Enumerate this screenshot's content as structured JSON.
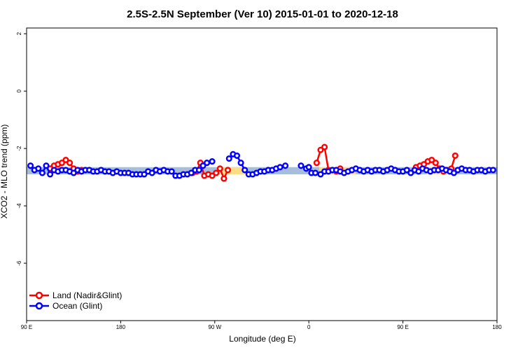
{
  "chart_data": {
    "type": "line",
    "title": "2.5S-2.5N September (Ver 10)   2015-01-01 to 2020-12-18",
    "xlabel": "Longitude (deg E)",
    "ylabel": "XCO2 - MLO trend (ppm)",
    "xlim": [
      90,
      450
    ],
    "ylim": [
      -8,
      2.2
    ],
    "x_ticks": [
      {
        "value": 90,
        "label": "90 E"
      },
      {
        "value": 162,
        "label": "180"
      },
      {
        "value": 234,
        "label": "90 W"
      },
      {
        "value": 306,
        "label": "0"
      },
      {
        "value": 378,
        "label": "90 E"
      },
      {
        "value": 450,
        "label": "180"
      }
    ],
    "y_ticks": [
      {
        "value": 2,
        "label": "2"
      },
      {
        "value": 0,
        "label": "0"
      },
      {
        "value": -2,
        "label": "-2"
      },
      {
        "value": -4,
        "label": "-4"
      },
      {
        "value": -6,
        "label": "-6"
      }
    ],
    "bands": [
      {
        "x0": 90,
        "x1": 450,
        "y0": -2.9,
        "y1": -2.65,
        "color": "#a6bddb"
      },
      {
        "x0": 108,
        "x1": 114,
        "y0": -2.9,
        "y1": -2.65,
        "color": "#fddc87"
      },
      {
        "x0": 238,
        "x1": 258,
        "y0": -2.9,
        "y1": -2.65,
        "color": "#fddc87"
      },
      {
        "x0": 314,
        "x1": 342,
        "y0": -2.9,
        "y1": -2.65,
        "color": "#fddc87"
      },
      {
        "x0": 396,
        "x1": 416,
        "y0": -2.9,
        "y1": -2.65,
        "color": "#fddc87"
      }
    ],
    "legend_position": "bottom-left",
    "series": [
      {
        "name": "Land (Nadir&Glint)",
        "color": "#ff0000",
        "x": [
          108,
          111,
          114,
          117,
          120,
          123,
          126,
          129,
          132,
          217,
          220,
          223,
          226,
          229,
          232,
          235,
          238,
          241,
          244,
          312,
          315,
          318,
          321,
          324,
          327,
          330,
          388,
          391,
          394,
          397,
          400,
          403,
          406,
          409,
          412,
          415,
          418
        ],
        "y": [
          -2.7,
          -2.6,
          -2.55,
          -2.5,
          -2.4,
          -2.5,
          -2.7,
          -2.8,
          -2.75,
          -2.85,
          -2.8,
          -2.5,
          -2.95,
          -2.9,
          -2.95,
          -2.85,
          -2.7,
          -3.05,
          -2.75,
          -2.5,
          -2.05,
          -1.95,
          -2.75,
          -2.75,
          -2.8,
          -2.7,
          -2.65,
          -2.6,
          -2.55,
          -2.45,
          -2.4,
          -2.5,
          -2.7,
          -2.8,
          -2.75,
          -2.7,
          -2.25
        ]
      },
      {
        "name": "Ocean (Glint)",
        "color": "#0000ff",
        "x": [
          93,
          96,
          99,
          102,
          105,
          108,
          111,
          114,
          117,
          120,
          123,
          126,
          129,
          132,
          135,
          138,
          141,
          144,
          147,
          150,
          153,
          156,
          159,
          162,
          165,
          168,
          171,
          174,
          177,
          180,
          183,
          186,
          189,
          192,
          195,
          198,
          201,
          204,
          207,
          210,
          213,
          216,
          219,
          222,
          225,
          228,
          232,
          245,
          248,
          251,
          254,
          257,
          260,
          263,
          266,
          269,
          272,
          275,
          278,
          281,
          284,
          288,
          300,
          304,
          306,
          308,
          311,
          315,
          318,
          321,
          324,
          327,
          330,
          333,
          336,
          339,
          342,
          345,
          348,
          351,
          354,
          357,
          360,
          363,
          366,
          369,
          372,
          375,
          378,
          381,
          384,
          387,
          390,
          393,
          396,
          399,
          402,
          405,
          408,
          411,
          414,
          417,
          420,
          423,
          426,
          429,
          432,
          435,
          438,
          441,
          444,
          447
        ],
        "y": [
          -2.6,
          -2.75,
          -2.7,
          -2.85,
          -2.6,
          -2.9,
          -2.75,
          -2.8,
          -2.75,
          -2.75,
          -2.8,
          -2.85,
          -2.75,
          -2.8,
          -2.75,
          -2.75,
          -2.8,
          -2.8,
          -2.75,
          -2.8,
          -2.8,
          -2.85,
          -2.8,
          -2.85,
          -2.85,
          -2.85,
          -2.9,
          -2.9,
          -2.9,
          -2.9,
          -2.8,
          -2.85,
          -2.75,
          -2.8,
          -2.75,
          -2.8,
          -2.8,
          -2.95,
          -2.95,
          -2.9,
          -2.9,
          -2.85,
          -2.75,
          -2.75,
          -2.6,
          -2.5,
          -2.45,
          -2.35,
          -2.2,
          -2.25,
          -2.5,
          -2.75,
          -2.9,
          -2.9,
          -2.85,
          -2.8,
          -2.8,
          -2.75,
          -2.75,
          -2.7,
          -2.65,
          -2.6,
          -2.6,
          -2.7,
          -2.65,
          -2.85,
          -2.85,
          -2.9,
          -2.8,
          -2.8,
          -2.75,
          -2.75,
          -2.8,
          -2.85,
          -2.8,
          -2.75,
          -2.7,
          -2.75,
          -2.8,
          -2.75,
          -2.8,
          -2.75,
          -2.75,
          -2.8,
          -2.75,
          -2.7,
          -2.75,
          -2.8,
          -2.8,
          -2.75,
          -2.85,
          -2.75,
          -2.8,
          -2.7,
          -2.75,
          -2.8,
          -2.75,
          -2.75,
          -2.7,
          -2.75,
          -2.8,
          -2.85,
          -2.75,
          -2.7,
          -2.75,
          -2.75,
          -2.8,
          -2.75,
          -2.75,
          -2.8,
          -2.75,
          -2.75
        ]
      }
    ]
  }
}
